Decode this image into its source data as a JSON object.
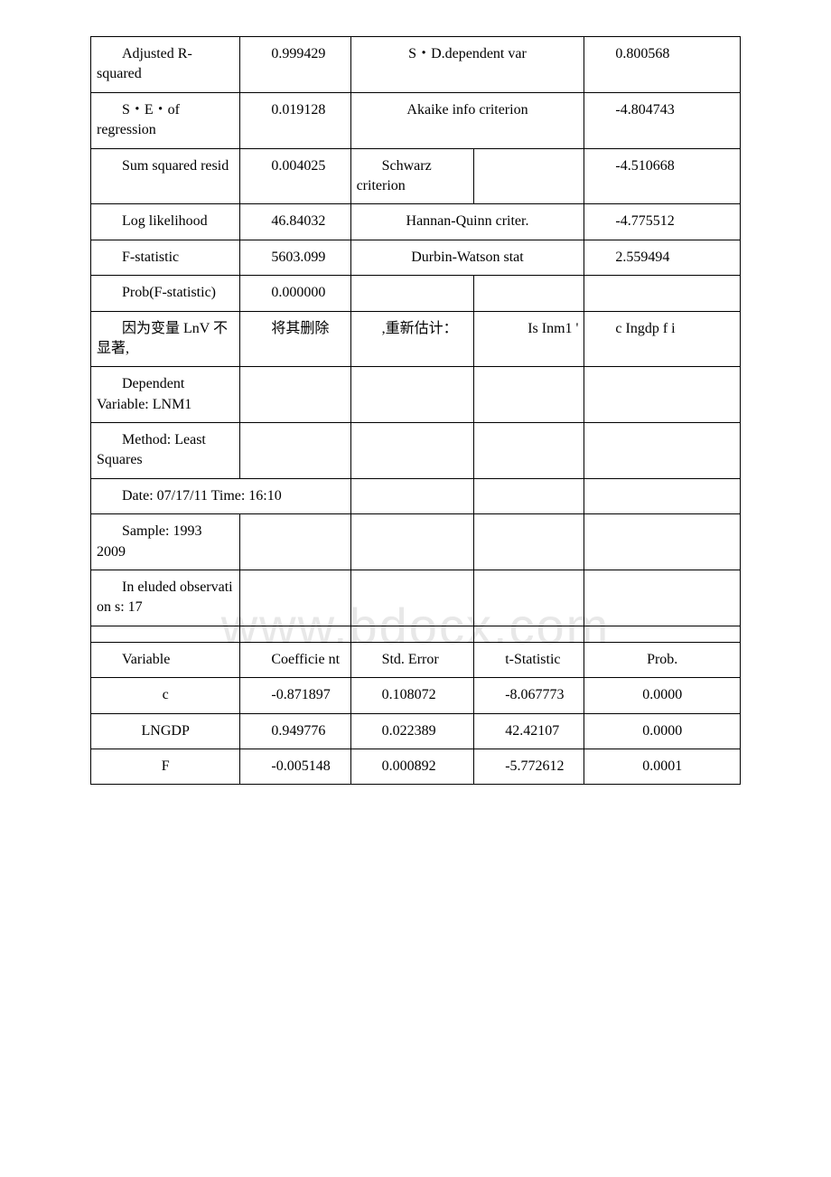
{
  "watermark": "www.bdocx.com",
  "stats1": [
    {
      "label": "Adjusted R-squared",
      "value": "0.999429",
      "right_label": "S・D.dependent var",
      "right_value": "0.800568"
    },
    {
      "label": "S・E・of regression",
      "value": "0.019128",
      "right_label": "Akaike info criterion",
      "right_value": "-4.804743"
    },
    {
      "label": "Sum squared resid",
      "value": "0.004025",
      "right_label_a": "Schwarz criterion",
      "right_label_b": "",
      "right_value": "-4.510668"
    },
    {
      "label": "Log likelihood",
      "value": "46.84032",
      "right_label": "Hannan-Quinn criter.",
      "right_value": "-4.775512"
    },
    {
      "label": "F-statistic",
      "value": "5603.099",
      "right_label": "Durbin-Watson stat",
      "right_value": "2.559494"
    },
    {
      "label": "Prob(F-statistic)",
      "value": "0.000000",
      "right_label": "",
      "right_value": ""
    }
  ],
  "mid_row": {
    "c1": "因为变量 LnV 不显著,",
    "c2": "将其删除",
    "c3": ",重新估计：",
    "c4": "Is Inm1 '",
    "c5": "c Ingdp f i"
  },
  "header2": {
    "dep": "Dependent Variable: LNM1",
    "method": "Method: Least Squares",
    "date": "Date: 07/17/11 Time: 16:10",
    "sample": "Sample: 1993 2009",
    "included": "In eluded observati on s: 17"
  },
  "table2_header": {
    "c1": "Variable",
    "c2": "Coefficie nt",
    "c3": "Std. Error",
    "c4": "t-Statistic",
    "c5": "Prob."
  },
  "table2_rows": [
    {
      "c1": "c",
      "c2": "-0.871897",
      "c3": "0.108072",
      "c4": "-8.067773",
      "c5": "0.0000"
    },
    {
      "c1": "LNGDP",
      "c2": "0.949776",
      "c3": "0.022389",
      "c4": "42.42107",
      "c5": "0.0000"
    },
    {
      "c1": "F",
      "c2": "-0.005148",
      "c3": "0.000892",
      "c4": "-5.772612",
      "c5": "0.0001"
    }
  ],
  "colors": {
    "border": "#000000",
    "background": "#ffffff",
    "text": "#000000",
    "watermark": "#e8e8e8"
  },
  "font_sizes": {
    "body": 16,
    "watermark": 56
  }
}
